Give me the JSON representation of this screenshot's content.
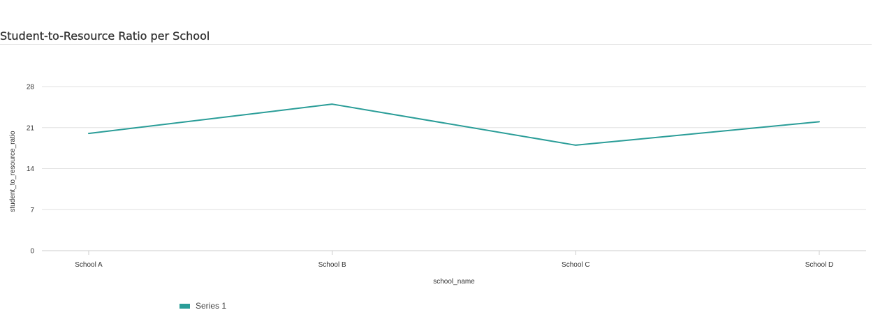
{
  "chart_data": {
    "type": "line",
    "title": "Student-to-Resource Ratio per School",
    "xlabel": "school_name",
    "ylabel": "student_to_resource_ratio",
    "categories": [
      "School A",
      "School B",
      "School C",
      "School D"
    ],
    "series": [
      {
        "name": "Series 1",
        "values": [
          20,
          25,
          18,
          22
        ],
        "color": "#2a9d98"
      }
    ],
    "ylim": [
      0,
      28
    ],
    "yticks": [
      0,
      7,
      14,
      21,
      28
    ],
    "grid": true,
    "legend_position": "bottom-left"
  }
}
